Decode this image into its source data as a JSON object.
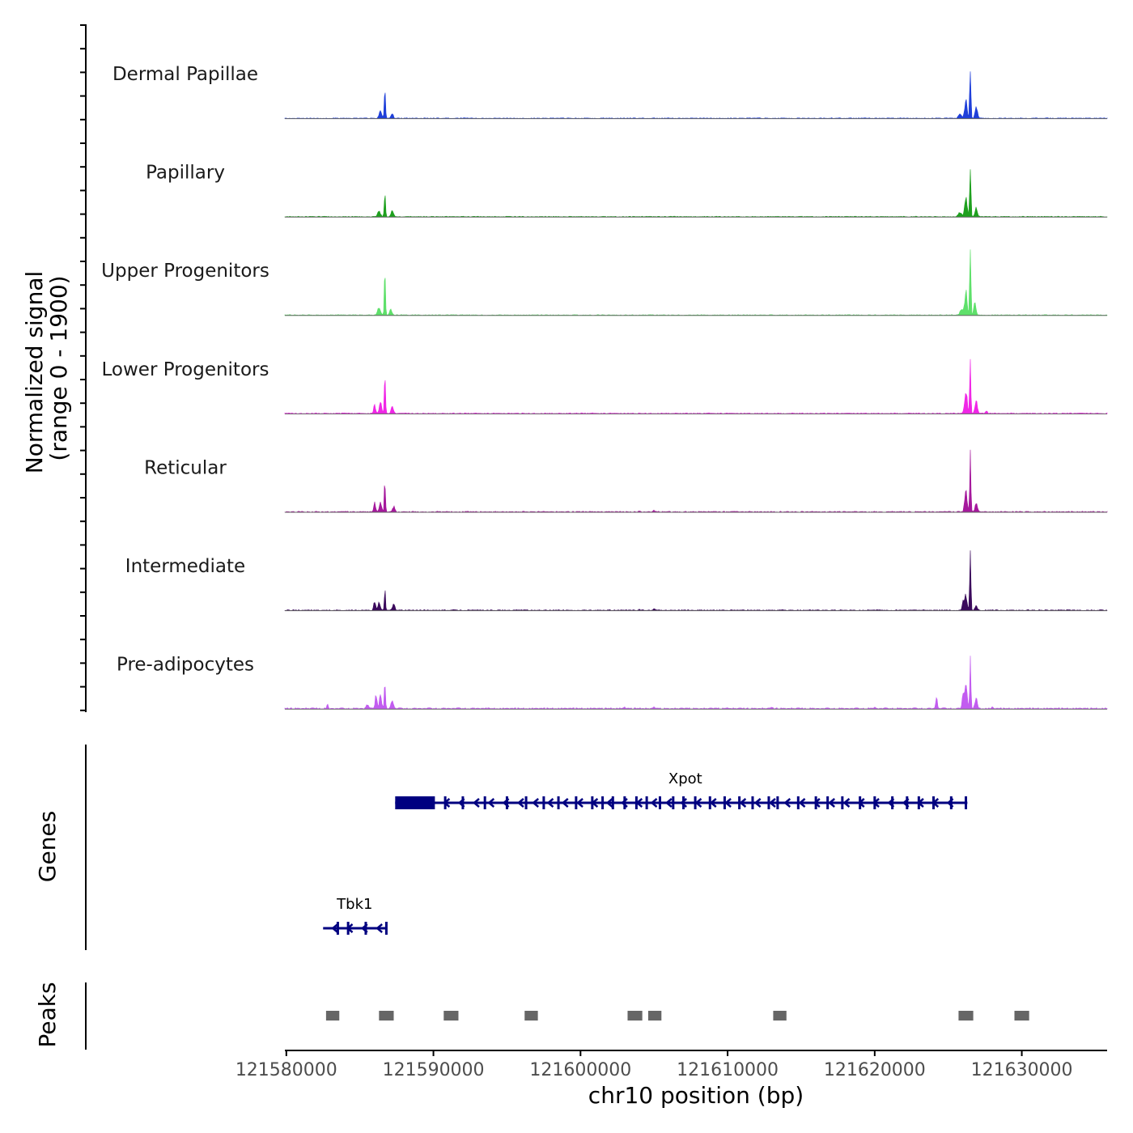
{
  "chart_data": {
    "type": "area",
    "title": "",
    "chromosome": "chr10",
    "xlabel": "chr10 position (bp)",
    "ylabel": "Normalized signal",
    "ylabel_range": "(range 0 - 1900)",
    "xlim": [
      121579900,
      121635800
    ],
    "ylim": [
      0,
      1900
    ],
    "x_ticks": [
      121580000,
      121590000,
      121600000,
      121610000,
      121620000,
      121630000
    ],
    "x_tick_labels": [
      "121580000",
      "121590000",
      "121600000",
      "121610000",
      "121620000",
      "121630000"
    ],
    "series": [
      {
        "name": "Dermal Papillae",
        "color": "#1f3fd9",
        "peaks": [
          [
            121586700,
            900,
            60
          ],
          [
            121586400,
            250,
            120
          ],
          [
            121587200,
            180,
            100
          ],
          [
            121626500,
            1900,
            55
          ],
          [
            121626200,
            600,
            120
          ],
          [
            121626900,
            400,
            110
          ],
          [
            121625800,
            150,
            150
          ]
        ],
        "background": 25
      },
      {
        "name": "Papillary",
        "color": "#1ea01e",
        "peaks": [
          [
            121586700,
            780,
            60
          ],
          [
            121586300,
            180,
            140
          ],
          [
            121587200,
            200,
            110
          ],
          [
            121626500,
            1900,
            55
          ],
          [
            121626200,
            700,
            120
          ],
          [
            121626900,
            300,
            110
          ],
          [
            121625800,
            150,
            150
          ]
        ],
        "background": 25
      },
      {
        "name": "Upper Progenitors",
        "color": "#5ee06a",
        "peaks": [
          [
            121586700,
            1700,
            55
          ],
          [
            121586300,
            260,
            130
          ],
          [
            121587100,
            200,
            110
          ],
          [
            121626500,
            2500,
            55
          ],
          [
            121626200,
            800,
            120
          ],
          [
            121626800,
            400,
            110
          ],
          [
            121625900,
            200,
            140
          ]
        ],
        "background": 25
      },
      {
        "name": "Lower Progenitors",
        "color": "#f026e6",
        "peaks": [
          [
            121586700,
            1500,
            55
          ],
          [
            121586000,
            300,
            90
          ],
          [
            121586400,
            350,
            110
          ],
          [
            121587200,
            250,
            110
          ],
          [
            121626500,
            1900,
            55
          ],
          [
            121626200,
            800,
            120
          ],
          [
            121626900,
            500,
            110
          ],
          [
            121627600,
            100,
            100
          ]
        ],
        "background": 30
      },
      {
        "name": "Reticular",
        "color": "#a5189c",
        "peaks": [
          [
            121586700,
            1100,
            55
          ],
          [
            121586000,
            300,
            90
          ],
          [
            121586400,
            300,
            110
          ],
          [
            121587300,
            200,
            100
          ],
          [
            121626500,
            1900,
            55
          ],
          [
            121626200,
            700,
            120
          ],
          [
            121626900,
            300,
            110
          ],
          [
            121605000,
            60,
            60
          ],
          [
            121604000,
            30,
            60
          ]
        ],
        "background": 30
      },
      {
        "name": "Intermediate",
        "color": "#3b0a5c",
        "peaks": [
          [
            121586700,
            720,
            55
          ],
          [
            121586000,
            300,
            90
          ],
          [
            121586300,
            250,
            110
          ],
          [
            121587300,
            250,
            100
          ],
          [
            121626500,
            1900,
            55
          ],
          [
            121626200,
            500,
            120
          ],
          [
            121626000,
            300,
            80
          ],
          [
            121626900,
            150,
            110
          ],
          [
            121605000,
            50,
            60
          ],
          [
            121604000,
            40,
            60
          ]
        ],
        "background": 30
      },
      {
        "name": "Pre-adipocytes",
        "color": "#c25cf0",
        "peaks": [
          [
            121586700,
            900,
            55
          ],
          [
            121586100,
            450,
            90
          ],
          [
            121586400,
            450,
            110
          ],
          [
            121585500,
            150,
            110
          ],
          [
            121587200,
            300,
            110
          ],
          [
            121582800,
            150,
            60
          ],
          [
            121626500,
            1600,
            55
          ],
          [
            121626200,
            800,
            120
          ],
          [
            121626000,
            500,
            80
          ],
          [
            121624200,
            450,
            70
          ],
          [
            121626900,
            350,
            110
          ],
          [
            121605000,
            60,
            60
          ],
          [
            121603000,
            50,
            60
          ],
          [
            121610000,
            40,
            60
          ],
          [
            121613000,
            50,
            60
          ],
          [
            121620000,
            40,
            80
          ],
          [
            121628000,
            50,
            60
          ]
        ],
        "background": 40
      }
    ],
    "genes": [
      {
        "name": "Xpot",
        "start": 121587400,
        "end": 121626300,
        "strand": "-",
        "cds_start": 121587400,
        "cds_end": 121590100,
        "exons": [
          121590800,
          121592000,
          121593500,
          121595000,
          121596300,
          121597500,
          121598500,
          121599700,
          121600800,
          121601500,
          121602200,
          121603000,
          121603800,
          121604500,
          121605400,
          121606300,
          121607000,
          121607800,
          121608800,
          121609800,
          121610800,
          121611700,
          121612800,
          121613400,
          121614800,
          121616000,
          121616800,
          121617800,
          121619000,
          121620000,
          121621200,
          121622200,
          121623000,
          121624000,
          121625200,
          121626200
        ],
        "row": 0
      },
      {
        "name": "Tbk1",
        "start": 121582500,
        "end": 121586800,
        "strand": "-",
        "cds_start": null,
        "cds_end": null,
        "exons": [
          121583500,
          121584200,
          121585400,
          121586800
        ],
        "row": 1
      }
    ],
    "peaks": [
      [
        121582700,
        121583600
      ],
      [
        121586300,
        121587300
      ],
      [
        121590700,
        121591700
      ],
      [
        121596200,
        121597100
      ],
      [
        121603200,
        121604200
      ],
      [
        121604600,
        121605500
      ],
      [
        121613100,
        121614000
      ],
      [
        121625700,
        121626700
      ],
      [
        121629500,
        121630500
      ]
    ],
    "panel_titles": [
      "Genes",
      "Peaks"
    ]
  }
}
